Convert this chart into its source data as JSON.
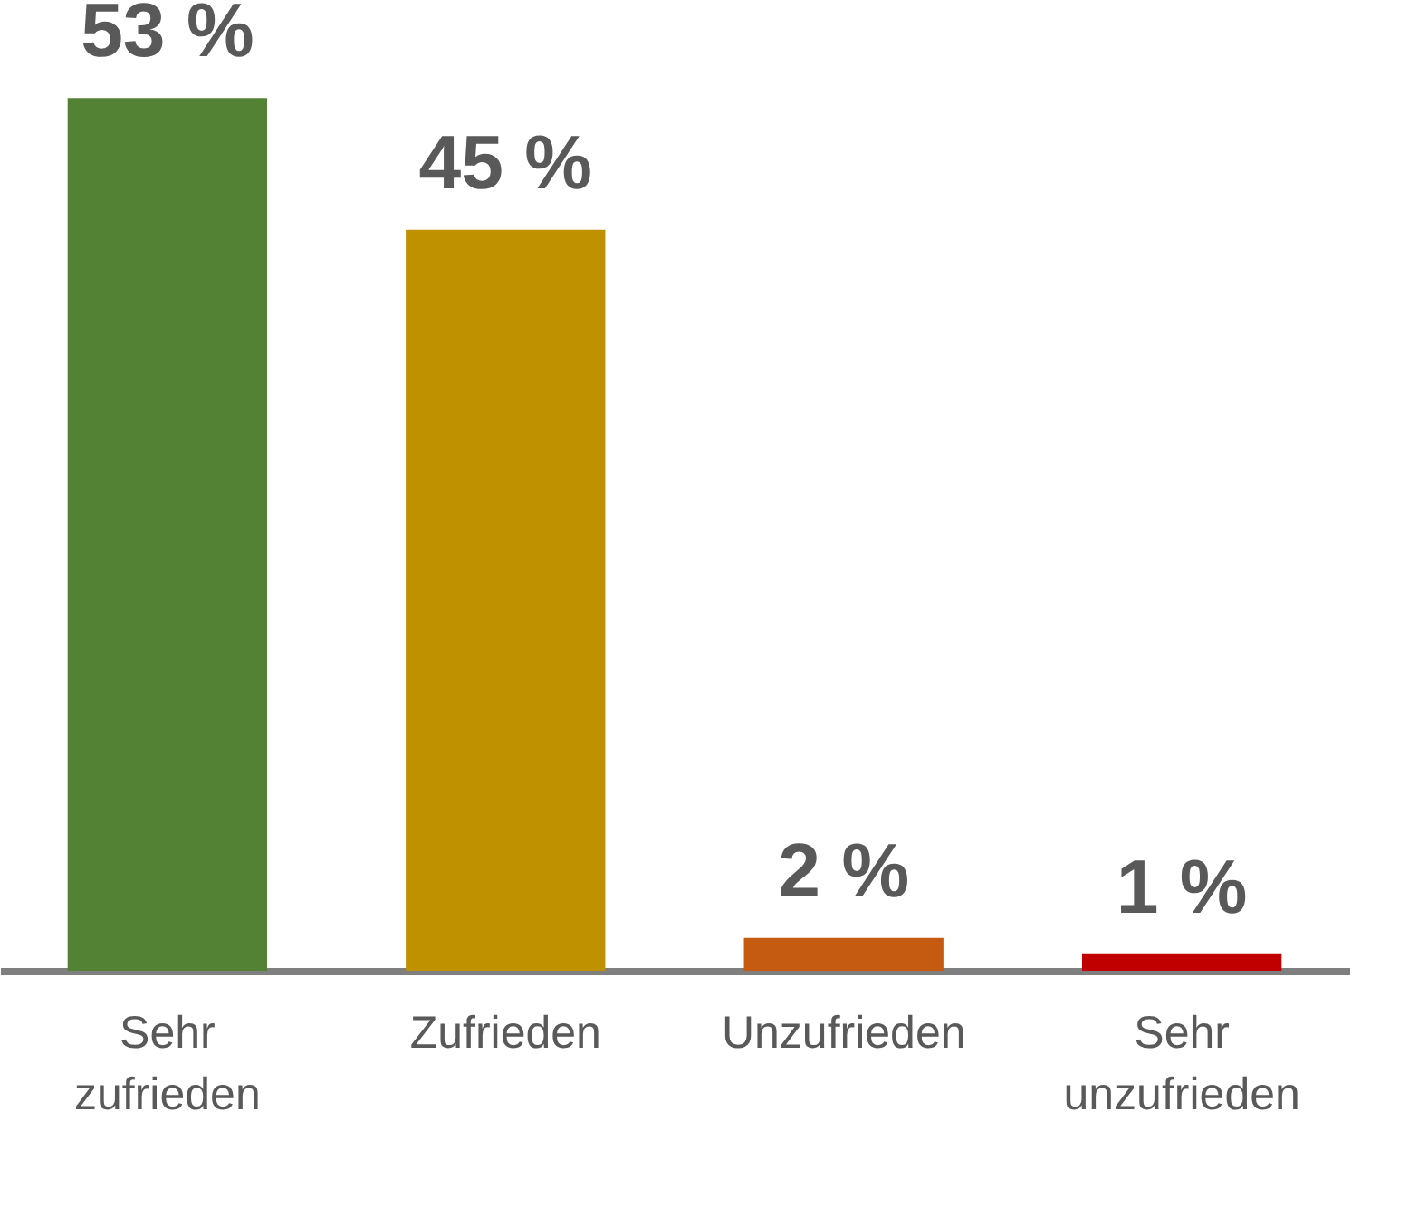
{
  "chart_data": {
    "type": "bar",
    "categories": [
      "Sehr zufrieden",
      "Zufrieden",
      "Unzufrieden",
      "Sehr unzufrieden"
    ],
    "values": [
      53,
      45,
      2,
      1
    ],
    "colors": [
      "#548235",
      "#bf9000",
      "#c55a11",
      "#c00000"
    ],
    "value_labels": [
      "53 %",
      "45 %",
      "2 %",
      "1 %"
    ],
    "tick_labels": "x",
    "grid": false
  }
}
